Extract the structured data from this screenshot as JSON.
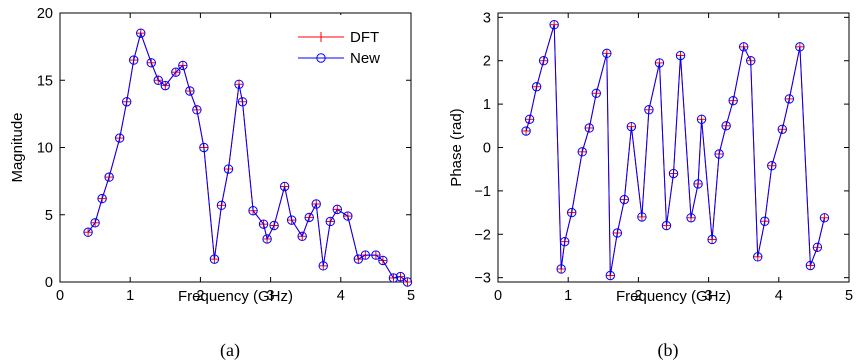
{
  "colors": {
    "dft": "#ff0000",
    "new": "#0000ff",
    "axis": "#000000"
  },
  "chart_data": [
    {
      "type": "line",
      "caption": "(a)",
      "xlabel": "Frequency (GHz)",
      "ylabel": "Magnitude",
      "xlim": [
        0,
        5
      ],
      "ylim": [
        0,
        20
      ],
      "xticks": [
        0,
        1,
        2,
        3,
        4,
        5
      ],
      "yticks": [
        0,
        5,
        10,
        15,
        20
      ],
      "grid": false,
      "legend_position": "top-right",
      "x": [
        0.4,
        0.5,
        0.6,
        0.7,
        0.85,
        0.95,
        1.05,
        1.15,
        1.3,
        1.4,
        1.5,
        1.65,
        1.75,
        1.85,
        1.95,
        2.05,
        2.2,
        2.3,
        2.4,
        2.55,
        2.6,
        2.75,
        2.9,
        2.95,
        3.05,
        3.2,
        3.3,
        3.45,
        3.55,
        3.65,
        3.75,
        3.85,
        3.95,
        4.1,
        4.25,
        4.35,
        4.5,
        4.6,
        4.75,
        4.85,
        4.95
      ],
      "series": [
        {
          "name": "DFT",
          "marker": "plus",
          "values": [
            3.7,
            4.4,
            6.2,
            7.8,
            10.7,
            13.4,
            16.5,
            18.5,
            16.3,
            15.0,
            14.6,
            15.6,
            16.1,
            14.2,
            12.8,
            10.0,
            1.7,
            5.7,
            8.4,
            14.7,
            13.4,
            5.3,
            4.3,
            3.2,
            4.2,
            7.1,
            4.6,
            3.4,
            4.8,
            5.8,
            1.2,
            4.5,
            5.4,
            4.9,
            1.7,
            2.0,
            2.0,
            1.6,
            0.3,
            0.4,
            0.0
          ]
        },
        {
          "name": "New",
          "marker": "circle",
          "values": [
            3.7,
            4.4,
            6.2,
            7.8,
            10.7,
            13.4,
            16.5,
            18.5,
            16.3,
            15.0,
            14.6,
            15.6,
            16.1,
            14.2,
            12.8,
            10.0,
            1.7,
            5.7,
            8.4,
            14.7,
            13.4,
            5.3,
            4.3,
            3.2,
            4.2,
            7.1,
            4.6,
            3.4,
            4.8,
            5.8,
            1.2,
            4.5,
            5.4,
            4.9,
            1.7,
            2.0,
            2.0,
            1.6,
            0.3,
            0.4,
            0.0
          ]
        }
      ]
    },
    {
      "type": "line",
      "caption": "(b)",
      "xlabel": "Frequency (GHz)",
      "ylabel": "Phase (rad)",
      "xlim": [
        0,
        5
      ],
      "ylim": [
        -3.1,
        3.1
      ],
      "xticks": [
        0,
        1,
        2,
        3,
        4,
        5
      ],
      "yticks": [
        -3,
        -2,
        -1,
        0,
        1,
        2,
        3
      ],
      "grid": false,
      "x": [
        0.4,
        0.45,
        0.55,
        0.65,
        0.8,
        0.9,
        0.95,
        1.05,
        1.2,
        1.3,
        1.4,
        1.55,
        1.6,
        1.7,
        1.8,
        1.9,
        2.05,
        2.15,
        2.3,
        2.4,
        2.5,
        2.6,
        2.75,
        2.85,
        2.9,
        3.05,
        3.15,
        3.25,
        3.35,
        3.5,
        3.6,
        3.7,
        3.8,
        3.9,
        4.05,
        4.15,
        4.3,
        4.45,
        4.55,
        4.65,
        4.8,
        4.9,
        5.0
      ],
      "series": [
        {
          "name": "DFT",
          "marker": "plus",
          "values": [
            0.38,
            0.65,
            1.4,
            2.0,
            2.83,
            -2.8,
            -2.17,
            -1.5,
            -0.1,
            0.45,
            1.25,
            2.17,
            -2.95,
            -1.97,
            -1.2,
            0.48,
            -1.6,
            0.87,
            1.95,
            -1.8,
            -0.6,
            2.12,
            -1.62,
            -0.84,
            0.65,
            -2.12,
            -0.15,
            0.5,
            1.08,
            2.32,
            2.0,
            -2.52,
            -1.7,
            -0.42,
            0.42,
            1.12,
            2.32,
            -2.72,
            -2.3,
            -1.62,
            null,
            null,
            null
          ]
        },
        {
          "name": "New",
          "marker": "circle",
          "values": [
            0.38,
            0.65,
            1.4,
            2.0,
            2.83,
            -2.8,
            -2.17,
            -1.5,
            -0.1,
            0.45,
            1.25,
            2.17,
            -2.95,
            -1.97,
            -1.2,
            0.48,
            -1.6,
            0.87,
            1.95,
            -1.8,
            -0.6,
            2.12,
            -1.62,
            -0.84,
            0.65,
            -2.12,
            -0.15,
            0.5,
            1.08,
            2.32,
            2.0,
            -2.52,
            -1.7,
            -0.42,
            0.42,
            1.12,
            2.32,
            -2.72,
            -2.3,
            -1.62,
            null,
            null,
            null
          ]
        }
      ]
    }
  ]
}
